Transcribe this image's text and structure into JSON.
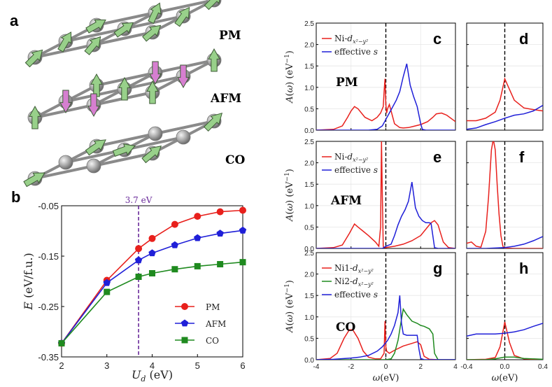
{
  "figure_labels": {
    "a": "a",
    "b": "b"
  },
  "lattice": {
    "pm_label": "PM",
    "afm_label": "AFM",
    "co_label": "CO"
  },
  "colors": {
    "red": "#e8201c",
    "blue": "#1f1fd8",
    "green": "#1f8a1f",
    "purple": "#6a2b9a",
    "sphere": "#a6a6a6",
    "arrow_green": "#98d08a",
    "arrow_pink": "#d67fd0"
  },
  "chart_data": [
    {
      "id": "b",
      "type": "line",
      "title": "",
      "xlabel": "U_d (eV)",
      "ylabel": "E (eV/f.u.)",
      "xlim": [
        2,
        6
      ],
      "ylim": [
        -0.35,
        -0.05
      ],
      "xticks": [
        2,
        3,
        4,
        5,
        6
      ],
      "yticks": [
        -0.35,
        -0.25,
        -0.15,
        -0.05
      ],
      "ytick_labels": [
        "-0.35",
        "-0.25",
        "-0.15",
        "-0.05"
      ],
      "vline": {
        "x": 3.7,
        "label": "3.7 eV"
      },
      "legend": "bottom-right",
      "series": [
        {
          "name": "PM",
          "color": "#e8201c",
          "marker": "circle",
          "x": [
            2,
            3,
            3.7,
            4,
            4.5,
            5,
            5.5,
            6
          ],
          "y": [
            -0.323,
            -0.198,
            -0.135,
            -0.115,
            -0.087,
            -0.071,
            -0.062,
            -0.059
          ]
        },
        {
          "name": "AFM",
          "color": "#1f1fd8",
          "marker": "pentagon",
          "x": [
            2,
            3,
            3.7,
            4,
            4.5,
            5,
            5.5,
            6
          ],
          "y": [
            -0.323,
            -0.203,
            -0.158,
            -0.144,
            -0.128,
            -0.114,
            -0.105,
            -0.099
          ]
        },
        {
          "name": "CO",
          "color": "#1f8a1f",
          "marker": "square",
          "x": [
            2,
            3,
            3.7,
            4,
            4.5,
            5,
            5.5,
            6
          ],
          "y": [
            -0.323,
            -0.221,
            -0.191,
            -0.184,
            -0.176,
            -0.17,
            -0.166,
            -0.162
          ]
        }
      ]
    },
    {
      "id": "spectral",
      "type": "line",
      "ylabel": "A(ω) (eV⁻¹)",
      "xlabel": "ω(eV)",
      "left_xlim": [
        -4,
        4
      ],
      "left_xticks": [
        -4,
        -2,
        0,
        2,
        4
      ],
      "left_xtick_labels": [
        "-4",
        "-2",
        "0",
        "2",
        "4"
      ],
      "right_xlim": [
        -0.4,
        0.4
      ],
      "right_xticks": [
        -0.4,
        0,
        0.4
      ],
      "right_xtick_labels": [
        "-0.4",
        "0.0",
        "0.4"
      ],
      "ylim": [
        0,
        2.5
      ],
      "yticks": [
        0,
        0.5,
        1.0,
        1.5,
        2.0,
        2.5
      ],
      "ytick_labels": [
        "0.0",
        "0.5",
        "1.0",
        "1.5",
        "2.0",
        "2.5"
      ],
      "rows": [
        {
          "name": "PM",
          "left_letter": "c",
          "right_letter": "d",
          "legend": [
            "Ni-d_{x²−y²}",
            "effective s"
          ],
          "left_series": [
            {
              "name": "Ni-d",
              "color": "#e8201c",
              "x": [
                -4,
                -3,
                -2.5,
                -2.2,
                -2,
                -1.8,
                -1.6,
                -1.2,
                -0.8,
                -0.5,
                -0.3,
                -0.15,
                -0.1,
                -0.05,
                0,
                0.05,
                0.1,
                0.2,
                0.3,
                0.5,
                0.8,
                1.0,
                1.3,
                1.6,
                2.0,
                2.4,
                2.7,
                2.9,
                3.2,
                3.5,
                4
              ],
              "y": [
                0,
                0.02,
                0.1,
                0.3,
                0.45,
                0.55,
                0.5,
                0.3,
                0.22,
                0.3,
                0.4,
                0.55,
                0.9,
                1.2,
                0.6,
                0.4,
                0.5,
                0.6,
                0.45,
                0.15,
                0.06,
                0.05,
                0.06,
                0.09,
                0.13,
                0.2,
                0.3,
                0.38,
                0.4,
                0.35,
                0.2
              ]
            },
            {
              "name": "effective s",
              "color": "#1f1fd8",
              "x": [
                -4,
                -1,
                -0.5,
                -0.2,
                0,
                0.2,
                0.4,
                0.6,
                0.8,
                1.0,
                1.2,
                1.4,
                1.6,
                1.8,
                2.0,
                2.1,
                2.3,
                2.6,
                4
              ],
              "y": [
                0,
                0,
                0.02,
                0.1,
                0.25,
                0.4,
                0.55,
                0.7,
                0.9,
                1.25,
                1.55,
                1.05,
                0.78,
                0.55,
                0.15,
                0.02,
                0,
                0,
                0
              ]
            }
          ],
          "right_series": [
            {
              "name": "Ni-d",
              "color": "#e8201c",
              "x": [
                -0.4,
                -0.3,
                -0.2,
                -0.1,
                -0.05,
                0,
                0.05,
                0.1,
                0.2,
                0.3,
                0.4
              ],
              "y": [
                0.22,
                0.22,
                0.28,
                0.42,
                0.7,
                1.2,
                0.95,
                0.7,
                0.52,
                0.48,
                0.45
              ]
            },
            {
              "name": "effective s",
              "color": "#1f1fd8",
              "x": [
                -0.4,
                -0.3,
                -0.2,
                -0.1,
                0,
                0.1,
                0.2,
                0.3,
                0.4
              ],
              "y": [
                0.02,
                0.05,
                0.13,
                0.2,
                0.28,
                0.35,
                0.38,
                0.45,
                0.58
              ]
            }
          ]
        },
        {
          "name": "AFM",
          "left_letter": "e",
          "right_letter": "f",
          "legend": [
            "Ni-d_{x²−y²}",
            "effective s"
          ],
          "left_series": [
            {
              "name": "Ni-d",
              "color": "#e8201c",
              "x": [
                -4,
                -3,
                -2.5,
                -2.1,
                -1.8,
                -1.6,
                -1.3,
                -1.0,
                -0.6,
                -0.4,
                -0.3,
                -0.25,
                -0.2,
                -0.15,
                -0.1,
                0,
                0.5,
                1.0,
                1.5,
                2.0,
                2.4,
                2.6,
                2.8,
                3.0,
                3.3,
                3.6,
                4
              ],
              "y": [
                0,
                0.02,
                0.08,
                0.35,
                0.57,
                0.5,
                0.4,
                0.3,
                0.15,
                0.05,
                0.5,
                2.5,
                1.2,
                0.05,
                0.02,
                0.02,
                0.05,
                0.1,
                0.18,
                0.3,
                0.5,
                0.6,
                0.65,
                0.55,
                0.15,
                0.02,
                0
              ]
            },
            {
              "name": "effective s",
              "color": "#1f1fd8",
              "x": [
                -4,
                -0.2,
                0,
                0.3,
                0.5,
                0.7,
                0.9,
                1.1,
                1.3,
                1.5,
                1.7,
                1.9,
                2.1,
                2.3,
                2.5,
                2.6,
                2.8,
                3.0,
                4
              ],
              "y": [
                0,
                0,
                0.05,
                0.1,
                0.3,
                0.55,
                0.75,
                0.9,
                1.1,
                1.55,
                0.95,
                0.75,
                0.65,
                0.6,
                0.6,
                0.58,
                0.02,
                0,
                0
              ]
            }
          ],
          "right_series": [
            {
              "name": "Ni-d",
              "color": "#e8201c",
              "x": [
                -0.4,
                -0.35,
                -0.3,
                -0.25,
                -0.2,
                -0.17,
                -0.14,
                -0.12,
                -0.1,
                -0.08,
                -0.06,
                -0.04,
                -0.02,
                0,
                0.1,
                0.2,
                0.4
              ],
              "y": [
                0.12,
                0.15,
                0.05,
                0.03,
                0.4,
                1.2,
                2.3,
                2.55,
                2.3,
                1.5,
                0.8,
                0.3,
                0.05,
                0.01,
                0,
                0,
                0
              ]
            },
            {
              "name": "effective s",
              "color": "#1f1fd8",
              "x": [
                -0.4,
                -0.2,
                -0.1,
                0,
                0.1,
                0.2,
                0.3,
                0.4
              ],
              "y": [
                0,
                0,
                0.01,
                0.02,
                0.05,
                0.1,
                0.18,
                0.28
              ]
            }
          ]
        },
        {
          "name": "CO",
          "left_letter": "g",
          "right_letter": "h",
          "legend": [
            "Ni1-d_{x²−y²}",
            "Ni2-d_{x²−y²}",
            "effective s"
          ],
          "left_series": [
            {
              "name": "Ni1-d",
              "color": "#e8201c",
              "x": [
                -4,
                -3.2,
                -2.8,
                -2.4,
                -2.1,
                -1.9,
                -1.6,
                -1.3,
                -1.0,
                -0.6,
                -0.3,
                -0.1,
                -0.05,
                0,
                0.05,
                0.2,
                0.5,
                1.0,
                1.5,
                1.8,
                2.0,
                2.2,
                2.5,
                3,
                4
              ],
              "y": [
                0,
                0.03,
                0.15,
                0.5,
                0.7,
                0.7,
                0.5,
                0.2,
                0.06,
                0.02,
                0.02,
                0.15,
                0.9,
                0.3,
                0.2,
                0.15,
                0.22,
                0.32,
                0.38,
                0.42,
                0.35,
                0.08,
                0.01,
                0,
                0
              ]
            },
            {
              "name": "Ni2-d",
              "color": "#1f8a1f",
              "x": [
                -4,
                0,
                0.3,
                0.5,
                0.7,
                0.9,
                1.0,
                1.2,
                1.5,
                1.8,
                2.0,
                2.2,
                2.5,
                2.7,
                2.8,
                3.0,
                4
              ],
              "y": [
                0,
                0,
                0.02,
                0.15,
                0.45,
                0.95,
                1.18,
                1.05,
                0.9,
                0.85,
                0.8,
                0.78,
                0.72,
                0.6,
                0.15,
                0,
                0
              ]
            },
            {
              "name": "effective s",
              "color": "#1f1fd8",
              "x": [
                -4,
                -3,
                -2,
                -1.5,
                -1.0,
                -0.5,
                -0.2,
                0,
                0.1,
                0.3,
                0.5,
                0.7,
                0.8,
                0.9,
                1.0,
                1.2,
                1.5,
                1.8,
                1.9,
                2.0,
                2.2,
                4
              ],
              "y": [
                0,
                0.01,
                0.04,
                0.06,
                0.1,
                0.2,
                0.3,
                0.4,
                0.45,
                0.6,
                0.8,
                1.1,
                1.5,
                0.85,
                0.6,
                0.57,
                0.57,
                0.57,
                0.25,
                0.03,
                0,
                0
              ]
            }
          ],
          "right_series": [
            {
              "name": "Ni1-d",
              "color": "#e8201c",
              "x": [
                -0.4,
                -0.2,
                -0.1,
                -0.05,
                0,
                0.05,
                0.1,
                0.2,
                0.4
              ],
              "y": [
                0,
                0.01,
                0.05,
                0.3,
                0.88,
                0.4,
                0.1,
                0.02,
                0
              ]
            },
            {
              "name": "Ni2-d",
              "color": "#1f8a1f",
              "x": [
                -0.4,
                -0.2,
                -0.1,
                0,
                0.1,
                0.2,
                0.4
              ],
              "y": [
                0,
                0,
                0.02,
                0.06,
                0.06,
                0.03,
                0.01
              ]
            },
            {
              "name": "effective s",
              "color": "#1f1fd8",
              "x": [
                -0.4,
                -0.3,
                -0.2,
                -0.1,
                0,
                0.1,
                0.2,
                0.3,
                0.4
              ],
              "y": [
                0.55,
                0.6,
                0.6,
                0.6,
                0.62,
                0.65,
                0.7,
                0.78,
                0.85
              ]
            }
          ]
        }
      ]
    }
  ]
}
